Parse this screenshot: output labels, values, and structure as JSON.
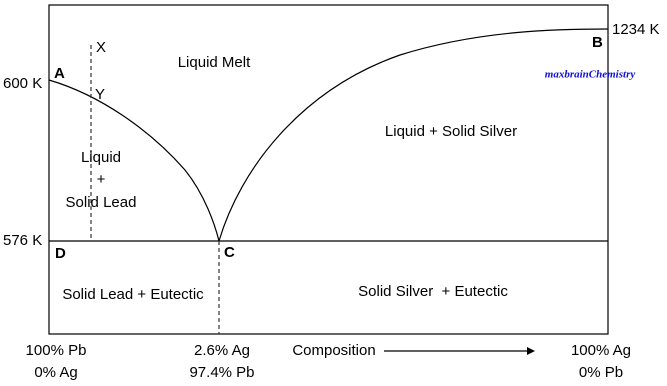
{
  "temperatures": {
    "top": "1234 K",
    "a": "600 K",
    "eutectic": "576 K"
  },
  "points": {
    "a": "A",
    "b": "B",
    "c": "C",
    "d": "D",
    "x": "X",
    "y": "Y"
  },
  "regions": {
    "liquid_melt": "Liquid Melt",
    "liquid_silver": "Liquid + Solid Silver",
    "liquid_lead": [
      "Liquid",
      "+",
      "Solid Lead"
    ],
    "lead_eutectic": "Solid Lead + Eutectic",
    "silver_eutectic": "Solid Silver  + Eutectic"
  },
  "watermark": "maxbrainChemistry",
  "composition": {
    "left": [
      "100% Pb",
      "0% Ag"
    ],
    "eutectic": [
      "2.6% Ag",
      "97.4% Pb"
    ],
    "axis": "Composition",
    "right": [
      "100% Ag",
      "0% Pb"
    ]
  }
}
